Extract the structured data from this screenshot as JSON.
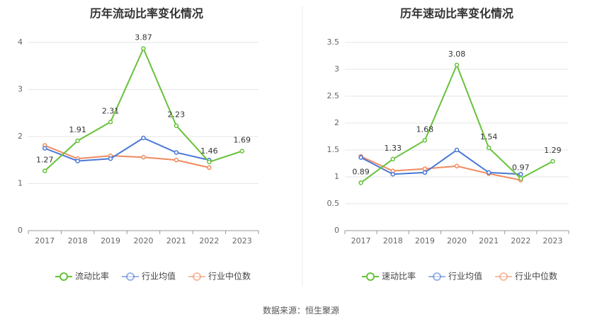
{
  "source": "数据来源：恒生聚源",
  "chart_data": [
    {
      "type": "line",
      "title": "历年流动比率变化情况",
      "categories": [
        "2017",
        "2018",
        "2019",
        "2020",
        "2021",
        "2022",
        "2023"
      ],
      "ylim": [
        0,
        4
      ],
      "yticks": [
        0,
        1,
        2,
        3,
        4
      ],
      "grid": true,
      "legend_position": "bottom-center",
      "series": [
        {
          "name": "流动比率",
          "color": "#67c23a",
          "values": [
            1.27,
            1.91,
            2.31,
            3.87,
            2.23,
            1.46,
            1.69
          ],
          "labels": [
            "1.27",
            "1.91",
            "2.31",
            "3.87",
            "2.23",
            "1.46",
            "1.69"
          ]
        },
        {
          "name": "行业均值",
          "color": "#4a78d6",
          "values": [
            1.75,
            1.48,
            1.53,
            1.97,
            1.66,
            1.5,
            null
          ]
        },
        {
          "name": "行业中位数",
          "color": "#f08a5d",
          "values": [
            1.81,
            1.53,
            1.59,
            1.56,
            1.5,
            1.34,
            null
          ]
        }
      ]
    },
    {
      "type": "line",
      "title": "历年速动比率变化情况",
      "categories": [
        "2017",
        "2018",
        "2019",
        "2020",
        "2021",
        "2022",
        "2023"
      ],
      "ylim": [
        0,
        3.5
      ],
      "yticks": [
        0,
        0.5,
        1,
        1.5,
        2,
        2.5,
        3,
        3.5
      ],
      "grid": true,
      "legend_position": "bottom-center",
      "series": [
        {
          "name": "速动比率",
          "color": "#67c23a",
          "values": [
            0.89,
            1.33,
            1.68,
            3.08,
            1.54,
            0.97,
            1.29
          ],
          "labels": [
            "0.89",
            "1.33",
            "1.68",
            "3.08",
            "1.54",
            "0.97",
            "1.29"
          ]
        },
        {
          "name": "行业均值",
          "color": "#4a78d6",
          "values": [
            1.36,
            1.05,
            1.08,
            1.5,
            1.08,
            1.05,
            null
          ]
        },
        {
          "name": "行业中位数",
          "color": "#f08a5d",
          "values": [
            1.38,
            1.11,
            1.15,
            1.2,
            1.06,
            0.94,
            null
          ]
        }
      ]
    }
  ]
}
